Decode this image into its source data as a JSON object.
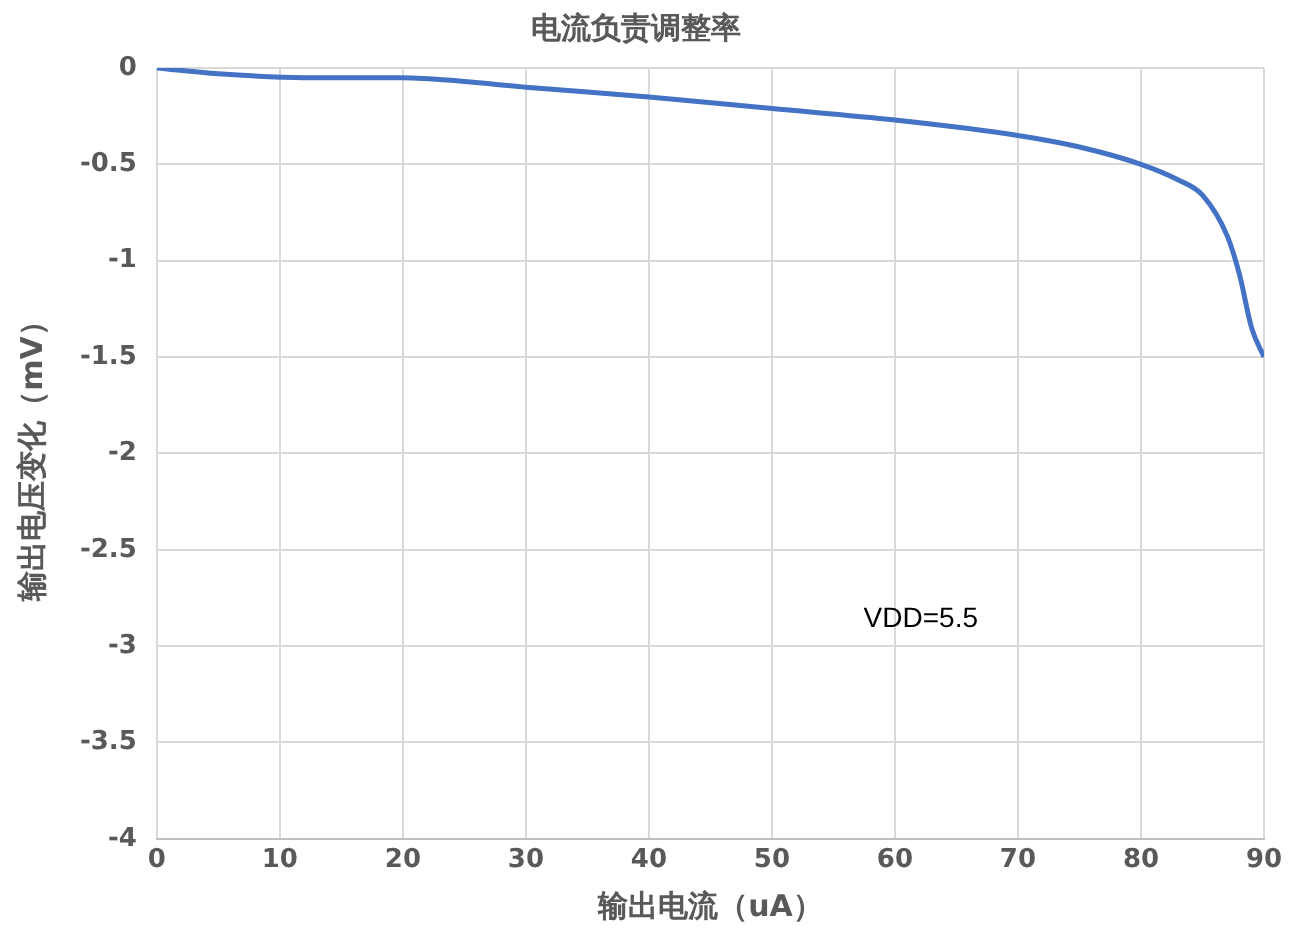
{
  "chart_data": {
    "type": "line",
    "title": "电流负责调整率",
    "xlabel": "输出电流（uA）",
    "ylabel": "输出电压变化（mV）",
    "annotations": [
      "VDD=5.5"
    ],
    "series": [
      {
        "color": "#4472c4",
        "x": [
          0,
          5,
          12,
          20,
          25,
          30,
          40,
          50,
          60,
          70,
          75,
          80,
          83,
          85,
          87,
          88,
          89,
          90
        ],
        "values": [
          0,
          -0.03,
          -0.05,
          -0.05,
          -0.07,
          -0.1,
          -0.15,
          -0.21,
          -0.27,
          -0.35,
          -0.41,
          -0.5,
          -0.58,
          -0.66,
          -0.87,
          -1.07,
          -1.35,
          -1.5
        ]
      }
    ],
    "xlim": [
      0,
      90
    ],
    "xticks": [
      0,
      10,
      20,
      30,
      40,
      50,
      60,
      70,
      80,
      90
    ],
    "ylim": [
      -4,
      0
    ],
    "yticks": [
      0,
      -0.5,
      -1,
      -1.5,
      -2,
      -2.5,
      -3,
      -3.5,
      -4
    ],
    "grid": true,
    "legend": false,
    "marker": "none",
    "line_style": "solid"
  }
}
